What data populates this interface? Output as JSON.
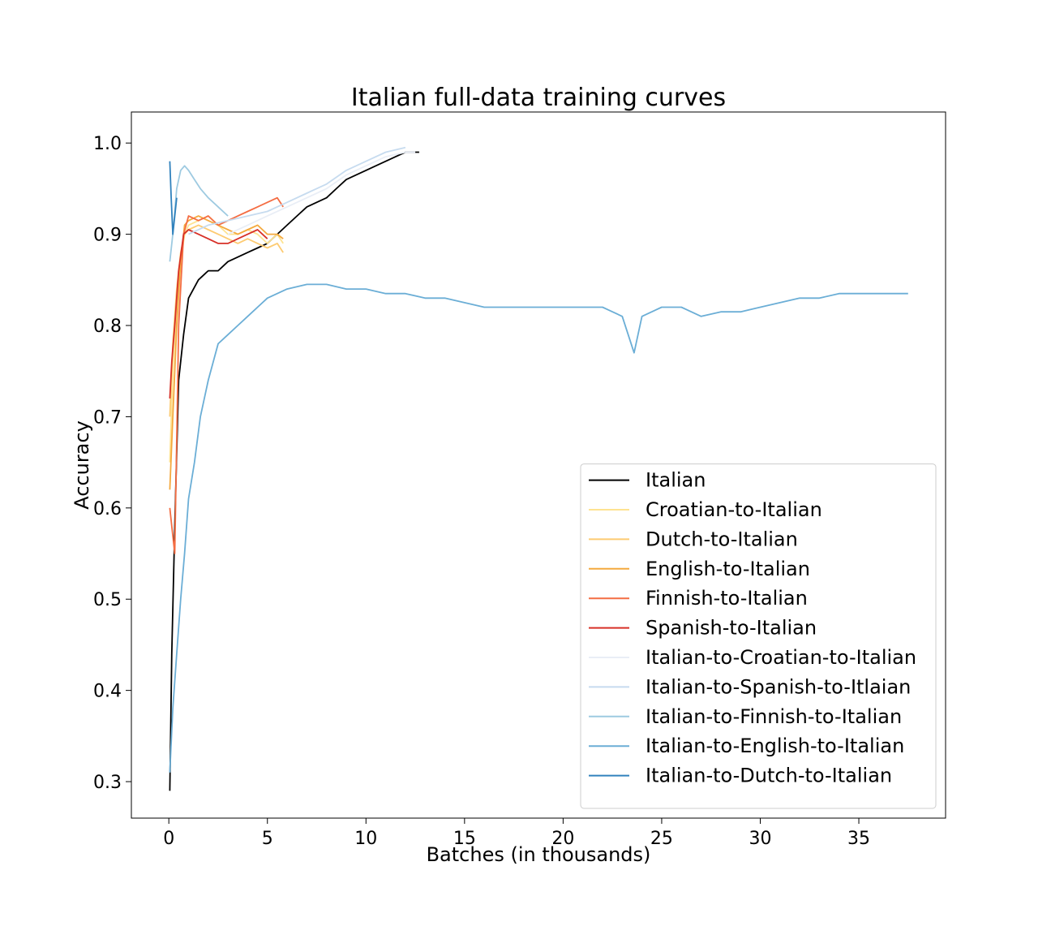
{
  "chart_data": {
    "type": "line",
    "title": "Italian full-data training curves",
    "xlabel": "Batches (in thousands)",
    "ylabel": "Accuracy",
    "xlim": [
      -1.9,
      39.4
    ],
    "ylim": [
      0.26,
      1.034
    ],
    "x_ticks": [
      "0",
      "5",
      "10",
      "15",
      "20",
      "25",
      "30",
      "35"
    ],
    "y_ticks": [
      "0.3",
      "0.4",
      "0.5",
      "0.6",
      "0.7",
      "0.8",
      "0.9",
      "1.0"
    ],
    "grid": false,
    "legend_position": "lower-right",
    "series": [
      {
        "name": "Italian",
        "color": "#000000",
        "x": [
          0.05,
          0.15,
          0.3,
          0.5,
          0.75,
          1.0,
          1.5,
          2.0,
          2.5,
          3.0,
          3.5,
          4.0,
          4.5,
          5.0,
          5.5,
          6.0,
          6.5,
          7.0,
          7.5,
          8.0,
          8.5,
          9.0,
          9.5,
          10.0,
          10.5,
          11.0,
          11.5,
          12.0,
          12.5,
          12.7
        ],
        "y": [
          0.29,
          0.44,
          0.58,
          0.74,
          0.79,
          0.83,
          0.85,
          0.86,
          0.86,
          0.87,
          0.875,
          0.88,
          0.885,
          0.89,
          0.9,
          0.91,
          0.92,
          0.93,
          0.935,
          0.94,
          0.95,
          0.96,
          0.965,
          0.97,
          0.975,
          0.98,
          0.985,
          0.99,
          0.99,
          0.99
        ]
      },
      {
        "name": "Croatian-to-Italian",
        "color": "#fee391",
        "x": [
          0.05,
          0.2,
          0.4,
          0.6,
          0.8,
          1.0,
          1.5,
          2.0,
          2.5,
          3.0,
          3.5,
          4.0,
          4.5,
          5.0,
          5.5,
          5.8
        ],
        "y": [
          0.65,
          0.75,
          0.82,
          0.87,
          0.9,
          0.91,
          0.915,
          0.92,
          0.91,
          0.9,
          0.9,
          0.905,
          0.9,
          0.89,
          0.9,
          0.89
        ]
      },
      {
        "name": "Dutch-to-Italian",
        "color": "#fdcb72",
        "x": [
          0.05,
          0.2,
          0.4,
          0.6,
          0.8,
          1.0,
          1.5,
          2.0,
          2.5,
          3.0,
          3.5,
          4.0,
          4.5,
          5.0,
          5.5,
          5.8
        ],
        "y": [
          0.7,
          0.78,
          0.84,
          0.88,
          0.9,
          0.905,
          0.91,
          0.905,
          0.9,
          0.895,
          0.89,
          0.895,
          0.89,
          0.885,
          0.89,
          0.88
        ]
      },
      {
        "name": "English-to-Italian",
        "color": "#f4a93e",
        "x": [
          0.05,
          0.2,
          0.4,
          0.6,
          0.8,
          1.0,
          1.5,
          2.0,
          2.5,
          3.0,
          3.5,
          4.0,
          4.5,
          5.0,
          5.5,
          5.8
        ],
        "y": [
          0.62,
          0.7,
          0.8,
          0.87,
          0.91,
          0.915,
          0.92,
          0.915,
          0.91,
          0.905,
          0.9,
          0.905,
          0.91,
          0.9,
          0.9,
          0.895
        ]
      },
      {
        "name": "Finnish-to-Italian",
        "color": "#f46d43",
        "x": [
          0.05,
          0.15,
          0.3,
          0.5,
          0.75,
          1.0,
          1.5,
          2.0,
          2.5,
          3.0,
          3.5,
          4.0,
          4.5,
          5.0,
          5.5,
          5.8
        ],
        "y": [
          0.6,
          0.58,
          0.55,
          0.8,
          0.9,
          0.92,
          0.915,
          0.92,
          0.91,
          0.915,
          0.92,
          0.925,
          0.93,
          0.935,
          0.94,
          0.93
        ]
      },
      {
        "name": "Spanish-to-Italian",
        "color": "#d73027",
        "x": [
          0.05,
          0.15,
          0.3,
          0.5,
          0.75,
          1.0,
          1.5,
          2.0,
          2.5,
          3.0,
          3.5,
          4.0,
          4.5,
          5.0
        ],
        "y": [
          0.72,
          0.76,
          0.8,
          0.86,
          0.9,
          0.905,
          0.9,
          0.895,
          0.89,
          0.89,
          0.895,
          0.9,
          0.905,
          0.895
        ]
      },
      {
        "name": "Italian-to-Croatian-to-Italian",
        "color": "#e9eef6",
        "x": [
          3.0,
          4.0,
          5.0,
          6.0,
          7.0,
          8.0,
          9.0,
          10.0,
          11.0,
          12.0,
          12.5
        ],
        "y": [
          0.9,
          0.91,
          0.92,
          0.93,
          0.94,
          0.95,
          0.965,
          0.975,
          0.985,
          0.99,
          0.99
        ]
      },
      {
        "name": "Italian-to-Spanish-to-Itlaian",
        "color": "#c6dbef",
        "x": [
          1.0,
          2.0,
          3.0,
          4.0,
          5.0,
          6.0,
          7.0,
          8.0,
          9.0,
          10.0,
          11.0,
          12.0
        ],
        "y": [
          0.9,
          0.91,
          0.915,
          0.92,
          0.925,
          0.935,
          0.945,
          0.955,
          0.97,
          0.98,
          0.99,
          0.995
        ]
      },
      {
        "name": "Italian-to-Finnish-to-Italian",
        "color": "#9ecae1",
        "x": [
          0.05,
          0.2,
          0.4,
          0.6,
          0.8,
          1.0,
          1.3,
          1.6,
          2.0,
          2.5,
          3.0
        ],
        "y": [
          0.87,
          0.9,
          0.95,
          0.97,
          0.975,
          0.97,
          0.96,
          0.95,
          0.94,
          0.93,
          0.92
        ]
      },
      {
        "name": "Italian-to-English-to-Italian",
        "color": "#6baed6",
        "x": [
          0.05,
          0.2,
          0.4,
          0.6,
          0.8,
          1.0,
          1.3,
          1.6,
          2.0,
          2.5,
          3.0,
          3.5,
          4.0,
          4.5,
          5.0,
          6.0,
          7.0,
          8.0,
          9.0,
          10.0,
          11.0,
          12.0,
          13.0,
          14.0,
          15.0,
          16.0,
          17.0,
          18.0,
          19.0,
          20.0,
          21.0,
          22.0,
          23.0,
          23.6,
          24.0,
          25.0,
          26.0,
          27.0,
          28.0,
          29.0,
          30.0,
          31.0,
          32.0,
          33.0,
          34.0,
          35.0,
          36.0,
          37.0,
          37.5
        ],
        "y": [
          0.31,
          0.38,
          0.44,
          0.5,
          0.55,
          0.61,
          0.65,
          0.7,
          0.74,
          0.78,
          0.79,
          0.8,
          0.81,
          0.82,
          0.83,
          0.84,
          0.845,
          0.845,
          0.84,
          0.84,
          0.835,
          0.835,
          0.83,
          0.83,
          0.825,
          0.82,
          0.82,
          0.82,
          0.82,
          0.82,
          0.82,
          0.82,
          0.81,
          0.77,
          0.81,
          0.82,
          0.82,
          0.81,
          0.815,
          0.815,
          0.82,
          0.825,
          0.83,
          0.83,
          0.835,
          0.835,
          0.835,
          0.835,
          0.835
        ]
      },
      {
        "name": "Italian-to-Dutch-to-Italian",
        "color": "#3182bd",
        "x": [
          0.05,
          0.12,
          0.2,
          0.3,
          0.4
        ],
        "y": [
          0.98,
          0.94,
          0.9,
          0.92,
          0.94
        ]
      }
    ]
  }
}
